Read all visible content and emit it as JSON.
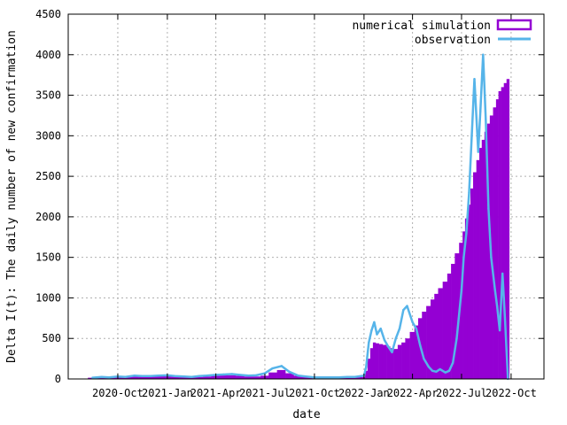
{
  "chart_data": {
    "type": "bar",
    "title": "",
    "xlabel": "date",
    "ylabel": "Delta I(t): The daily number of new confirmation",
    "ylim": [
      0,
      4500
    ],
    "yticks": [
      0,
      500,
      1000,
      1500,
      2000,
      2500,
      3000,
      3500,
      4000,
      4500
    ],
    "xlim": [
      "2020-07-01",
      "2022-12-01"
    ],
    "xticks": [
      {
        "date": "2020-10-01",
        "label": "2020-Oct"
      },
      {
        "date": "2021-01-01",
        "label": "2021-Jan"
      },
      {
        "date": "2021-04-01",
        "label": "2021-Apr"
      },
      {
        "date": "2021-07-01",
        "label": "2021-Jul"
      },
      {
        "date": "2021-10-01",
        "label": "2021-Oct"
      },
      {
        "date": "2022-01-01",
        "label": "2022-Jan"
      },
      {
        "date": "2022-04-01",
        "label": "2022-Apr"
      },
      {
        "date": "2022-07-01",
        "label": "2022-Jul"
      },
      {
        "date": "2022-10-01",
        "label": "2022-Oct"
      }
    ],
    "grid": true,
    "legend_position": "top-right",
    "x": [
      "2020-08-15",
      "2020-09-01",
      "2020-09-15",
      "2020-10-01",
      "2020-10-15",
      "2020-11-01",
      "2020-11-15",
      "2020-12-01",
      "2020-12-15",
      "2021-01-01",
      "2021-01-15",
      "2021-02-01",
      "2021-02-15",
      "2021-03-01",
      "2021-03-15",
      "2021-04-01",
      "2021-04-15",
      "2021-05-01",
      "2021-05-15",
      "2021-06-01",
      "2021-06-15",
      "2021-07-01",
      "2021-07-15",
      "2021-08-01",
      "2021-08-15",
      "2021-09-01",
      "2021-09-15",
      "2021-10-01",
      "2021-10-15",
      "2021-11-01",
      "2021-11-15",
      "2021-12-01",
      "2021-12-15",
      "2022-01-01",
      "2022-01-05",
      "2022-01-10",
      "2022-01-15",
      "2022-01-20",
      "2022-01-25",
      "2022-02-01",
      "2022-02-08",
      "2022-02-15",
      "2022-02-22",
      "2022-03-01",
      "2022-03-08",
      "2022-03-15",
      "2022-03-22",
      "2022-04-01",
      "2022-04-08",
      "2022-04-15",
      "2022-04-22",
      "2022-05-01",
      "2022-05-08",
      "2022-05-15",
      "2022-05-22",
      "2022-06-01",
      "2022-06-08",
      "2022-06-15",
      "2022-06-22",
      "2022-07-01",
      "2022-07-05",
      "2022-07-10",
      "2022-07-15",
      "2022-07-20",
      "2022-07-25",
      "2022-08-01",
      "2022-08-05",
      "2022-08-10",
      "2022-08-15",
      "2022-08-20",
      "2022-08-25",
      "2022-09-01",
      "2022-09-05",
      "2022-09-10",
      "2022-09-15",
      "2022-09-20",
      "2022-09-25"
    ],
    "series": [
      {
        "name": "numerical simulation",
        "style": "bars",
        "color": "#9400d3",
        "values": [
          15,
          20,
          20,
          20,
          25,
          30,
          35,
          40,
          45,
          40,
          30,
          25,
          25,
          25,
          30,
          40,
          45,
          45,
          40,
          30,
          30,
          40,
          80,
          110,
          70,
          40,
          30,
          20,
          15,
          15,
          15,
          15,
          20,
          25,
          100,
          250,
          380,
          450,
          440,
          430,
          420,
          400,
          380,
          370,
          420,
          450,
          500,
          580,
          660,
          750,
          830,
          900,
          980,
          1050,
          1120,
          1200,
          1300,
          1420,
          1550,
          1680,
          1820,
          1980,
          2150,
          2350,
          2550,
          2700,
          2850,
          2950,
          3050,
          3150,
          3250,
          3350,
          3450,
          3550,
          3600,
          3650,
          3700
        ]
      },
      {
        "name": "observation",
        "style": "line",
        "color": "#56b4e9",
        "values": [
          15,
          25,
          20,
          30,
          25,
          40,
          35,
          35,
          40,
          45,
          35,
          30,
          25,
          35,
          40,
          50,
          55,
          60,
          50,
          40,
          45,
          70,
          130,
          160,
          90,
          40,
          30,
          20,
          20,
          20,
          20,
          25,
          25,
          40,
          150,
          450,
          600,
          700,
          550,
          620,
          480,
          400,
          330,
          500,
          620,
          850,
          900,
          700,
          620,
          420,
          250,
          150,
          100,
          90,
          120,
          80,
          100,
          200,
          500,
          1100,
          1500,
          1800,
          2300,
          3000,
          3700,
          2800,
          3300,
          4000,
          3200,
          2100,
          1500,
          1100,
          900,
          600,
          1300,
          700,
          0
        ]
      }
    ]
  }
}
